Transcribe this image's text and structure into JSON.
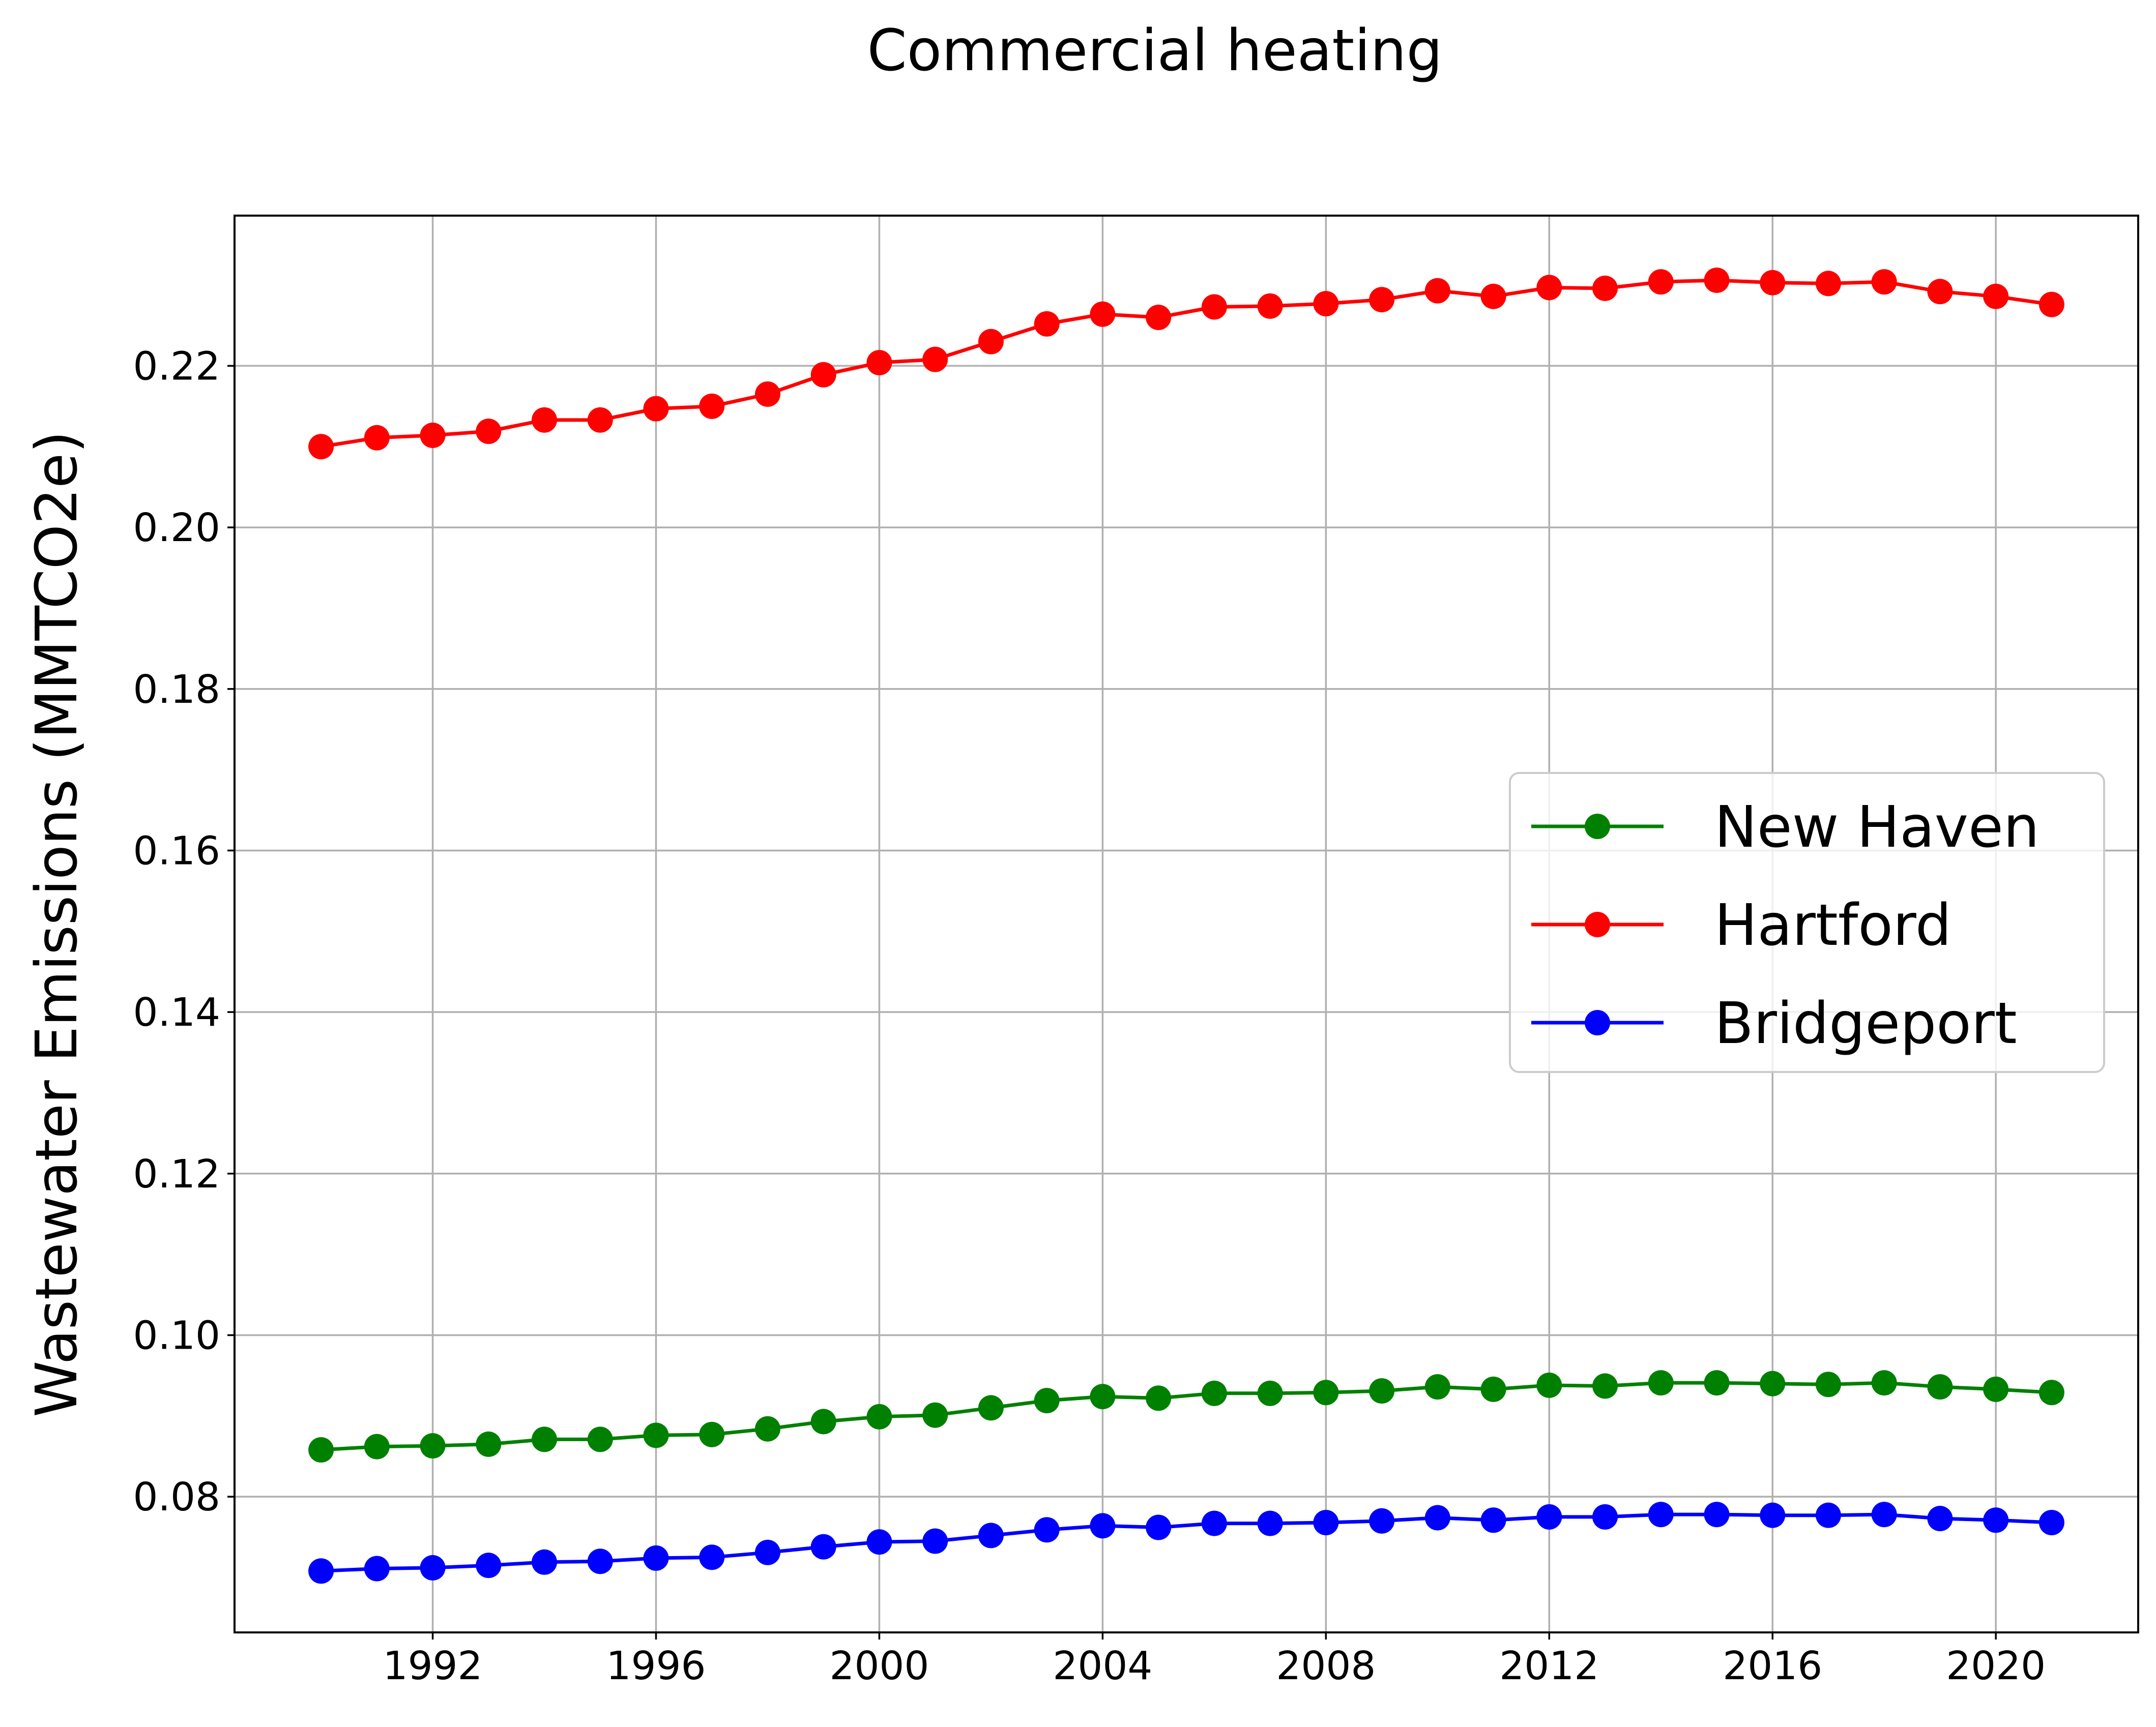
{
  "chart_data": {
    "type": "line",
    "title": "Commercial heating",
    "xlabel": "",
    "ylabel": "Wastewater Emissions (MMTCO2e)",
    "x": [
      1990,
      1991,
      1992,
      1993,
      1994,
      1995,
      1996,
      1997,
      1998,
      1999,
      2000,
      2001,
      2002,
      2003,
      2004,
      2005,
      2006,
      2007,
      2008,
      2009,
      2010,
      2011,
      2012,
      2013,
      2014,
      2015,
      2016,
      2017,
      2018,
      2019,
      2020,
      2021
    ],
    "xlim": [
      1988.45,
      2022.55
    ],
    "ylim": [
      0.0632,
      0.2386
    ],
    "xticks": [
      1992,
      1996,
      2000,
      2004,
      2008,
      2012,
      2016,
      2020
    ],
    "xtick_labels": [
      "1992",
      "1996",
      "2000",
      "2004",
      "2008",
      "2012",
      "2016",
      "2020"
    ],
    "yticks": [
      0.08,
      0.1,
      0.12,
      0.14,
      0.16,
      0.18,
      0.2,
      0.22
    ],
    "ytick_labels": [
      "0.08",
      "0.10",
      "0.12",
      "0.14",
      "0.16",
      "0.18",
      "0.20",
      "0.22"
    ],
    "grid": true,
    "legend_position": "center-right",
    "series": [
      {
        "name": "New Haven",
        "color": "#008000",
        "values": [
          0.0858,
          0.0862,
          0.0863,
          0.0865,
          0.0871,
          0.0871,
          0.0876,
          0.0877,
          0.0884,
          0.0893,
          0.0899,
          0.0901,
          0.091,
          0.0919,
          0.0924,
          0.0922,
          0.0928,
          0.0928,
          0.0929,
          0.0931,
          0.0936,
          0.0933,
          0.0938,
          0.0937,
          0.0941,
          0.0941,
          0.094,
          0.0939,
          0.0941,
          0.0936,
          0.0933,
          0.0929
        ]
      },
      {
        "name": "Hartford",
        "color": "#ff0000",
        "values": [
          0.21,
          0.2111,
          0.2114,
          0.2119,
          0.2133,
          0.2133,
          0.2147,
          0.215,
          0.2165,
          0.2189,
          0.2204,
          0.2208,
          0.223,
          0.2252,
          0.2264,
          0.226,
          0.2273,
          0.2274,
          0.2277,
          0.2282,
          0.2293,
          0.2286,
          0.2297,
          0.2296,
          0.2304,
          0.2306,
          0.2303,
          0.2302,
          0.2304,
          0.2292,
          0.2286,
          0.2276
        ]
      },
      {
        "name": "Bridgeport",
        "color": "#0000ff",
        "values": [
          0.0708,
          0.0711,
          0.0712,
          0.0715,
          0.0719,
          0.072,
          0.0724,
          0.0725,
          0.0731,
          0.0738,
          0.0744,
          0.0745,
          0.0752,
          0.0759,
          0.0764,
          0.0762,
          0.0767,
          0.0767,
          0.0768,
          0.077,
          0.0774,
          0.0771,
          0.0775,
          0.0775,
          0.0778,
          0.0778,
          0.0777,
          0.0777,
          0.0778,
          0.0773,
          0.0771,
          0.0768
        ]
      }
    ]
  }
}
